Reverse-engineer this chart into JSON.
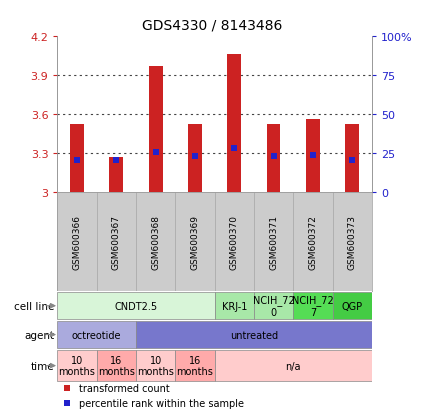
{
  "title": "GDS4330 / 8143486",
  "samples": [
    "GSM600366",
    "GSM600367",
    "GSM600368",
    "GSM600369",
    "GSM600370",
    "GSM600371",
    "GSM600372",
    "GSM600373"
  ],
  "bar_tops": [
    3.52,
    3.27,
    3.97,
    3.52,
    4.06,
    3.52,
    3.56,
    3.52
  ],
  "bar_bottom": 3.0,
  "percentile_values": [
    3.247,
    3.247,
    3.302,
    3.272,
    3.337,
    3.272,
    3.282,
    3.24
  ],
  "ylim": [
    3.0,
    4.2
  ],
  "yticks": [
    3.0,
    3.3,
    3.6,
    3.9,
    4.2
  ],
  "ytick_labels": [
    "3",
    "3.3",
    "3.6",
    "3.9",
    "4.2"
  ],
  "right_ytick_labels": [
    "0",
    "25",
    "50",
    "75",
    "100%"
  ],
  "bar_color": "#cc2222",
  "percentile_color": "#2222cc",
  "background_color": "#ffffff",
  "grid_color": "#444444",
  "cell_line_groups": [
    {
      "label": "CNDT2.5",
      "start": 0,
      "end": 3,
      "color": "#d8f5d8"
    },
    {
      "label": "KRJ-1",
      "start": 4,
      "end": 4,
      "color": "#a8e8a8"
    },
    {
      "label": "NCIH_72\n0",
      "start": 5,
      "end": 5,
      "color": "#a8e8a8"
    },
    {
      "label": "NCIH_72\n7",
      "start": 6,
      "end": 6,
      "color": "#55dd55"
    },
    {
      "label": "QGP",
      "start": 7,
      "end": 7,
      "color": "#44cc44"
    }
  ],
  "agent_groups": [
    {
      "label": "octreotide",
      "start": 0,
      "end": 1,
      "color": "#aaaadd"
    },
    {
      "label": "untreated",
      "start": 2,
      "end": 7,
      "color": "#7777cc"
    }
  ],
  "time_groups": [
    {
      "label": "10\nmonths",
      "start": 0,
      "end": 0,
      "color": "#ffcccc"
    },
    {
      "label": "16\nmonths",
      "start": 1,
      "end": 1,
      "color": "#ffaaaa"
    },
    {
      "label": "10\nmonths",
      "start": 2,
      "end": 2,
      "color": "#ffcccc"
    },
    {
      "label": "16\nmonths",
      "start": 3,
      "end": 3,
      "color": "#ffaaaa"
    },
    {
      "label": "n/a",
      "start": 4,
      "end": 7,
      "color": "#ffcccc"
    }
  ],
  "legend_items": [
    {
      "label": "transformed count",
      "color": "#cc2222",
      "marker": "s"
    },
    {
      "label": "percentile rank within the sample",
      "color": "#2222cc",
      "marker": "s"
    }
  ]
}
